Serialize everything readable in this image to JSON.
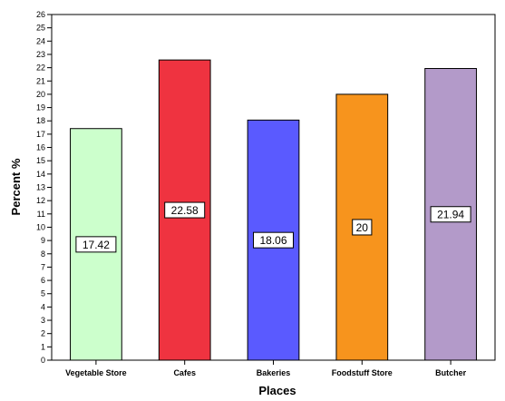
{
  "chart_data": {
    "type": "bar",
    "title": "",
    "xlabel": "Places",
    "ylabel": "Percent  %",
    "categories": [
      "Vegetable Store",
      "Cafes",
      "Bakeries",
      "Foodstuff Store",
      "Butcher"
    ],
    "values": [
      17.42,
      22.58,
      18.06,
      20,
      21.94
    ],
    "value_labels": [
      "17.42",
      "22.58",
      "18.06",
      "20",
      "21.94"
    ],
    "bar_colors": [
      "#ccffcc",
      "#ef3340",
      "#5a5aff",
      "#f7941d",
      "#b39ac9"
    ],
    "ylim": [
      0,
      26
    ],
    "yticks": [
      "0",
      "1",
      "2",
      "3",
      "4",
      "5",
      "6",
      "7",
      "8",
      "9",
      "10",
      "11",
      "12",
      "13",
      "14",
      "15",
      "16",
      "17",
      "18",
      "19",
      "20",
      "21",
      "22",
      "23",
      "24",
      "25",
      "26"
    ],
    "grid": false,
    "legend": "none"
  }
}
